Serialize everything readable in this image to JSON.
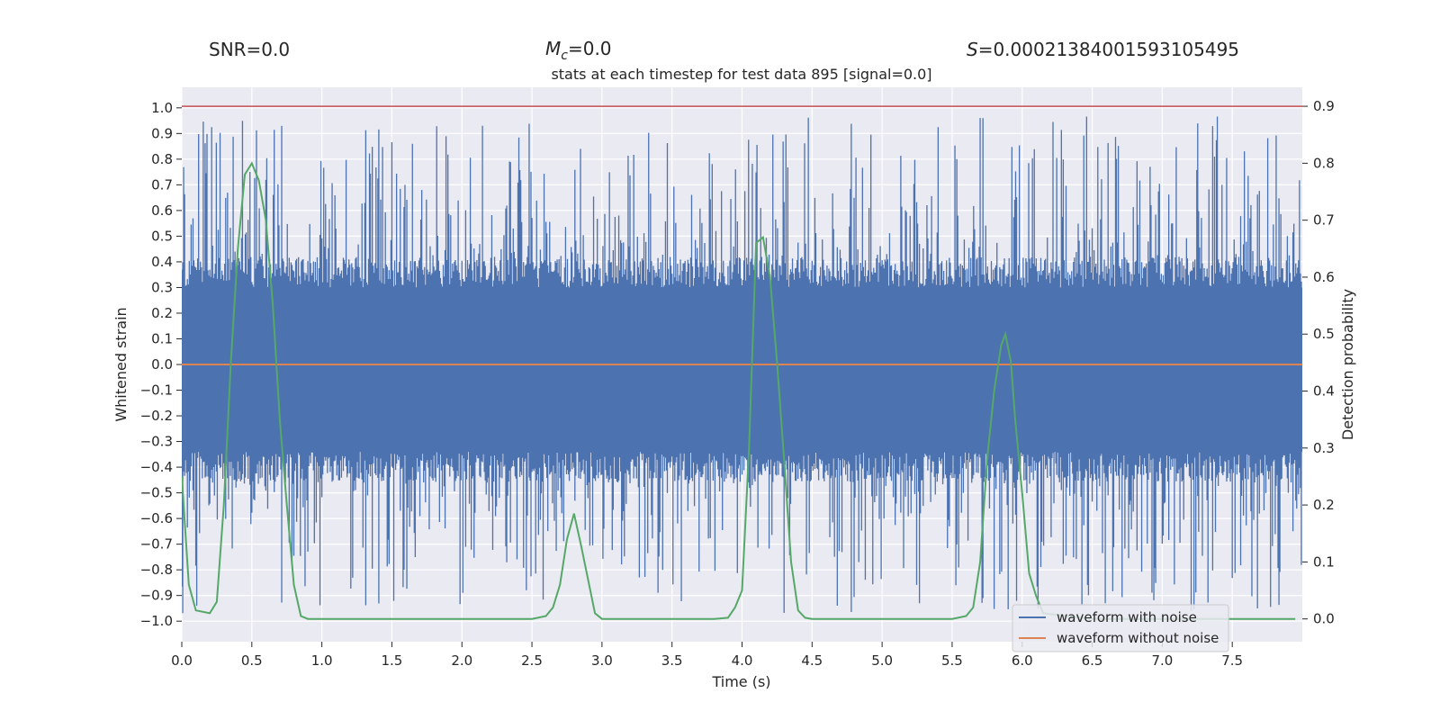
{
  "chart_data": {
    "type": "line",
    "title": "stats at each timestep for test data 895 [signal=0.0]",
    "header": {
      "snr": "SNR=0.0",
      "mc_symbol": "M",
      "mc_sub": "c",
      "mc_value": "=0.0",
      "s_symbol": "S",
      "s_value": "=0.00021384001593105495"
    },
    "xlabel": "Time (s)",
    "ylabel_left": "Whitened strain",
    "ylabel_right": "Detection probability",
    "xlim": [
      0.0,
      8.0
    ],
    "ylim_left": [
      -1.08,
      1.08
    ],
    "ylim_right": [
      -0.04,
      0.9333
    ],
    "x_ticks": [
      "0.0",
      "0.5",
      "1.0",
      "1.5",
      "2.0",
      "2.5",
      "3.0",
      "3.5",
      "4.0",
      "4.5",
      "5.0",
      "5.5",
      "6.0",
      "6.5",
      "7.0",
      "7.5"
    ],
    "x_tick_values": [
      0.0,
      0.5,
      1.0,
      1.5,
      2.0,
      2.5,
      3.0,
      3.5,
      4.0,
      4.5,
      5.0,
      5.5,
      6.0,
      6.5,
      7.0,
      7.5
    ],
    "y_left_ticks": [
      "1.0",
      "0.9",
      "0.8",
      "0.7",
      "0.6",
      "0.5",
      "0.4",
      "0.3",
      "0.2",
      "0.1",
      "0.0",
      "−0.1",
      "−0.2",
      "−0.3",
      "−0.4",
      "−0.5",
      "−0.6",
      "−0.7",
      "−0.8",
      "−0.9",
      "−1.0"
    ],
    "y_left_tick_values": [
      1.0,
      0.9,
      0.8,
      0.7,
      0.6,
      0.5,
      0.4,
      0.3,
      0.2,
      0.1,
      0.0,
      -0.1,
      -0.2,
      -0.3,
      -0.4,
      -0.5,
      -0.6,
      -0.7,
      -0.8,
      -0.9,
      -1.0
    ],
    "y_right_ticks": [
      "0.9",
      "0.8",
      "0.7",
      "0.6",
      "0.5",
      "0.4",
      "0.3",
      "0.2",
      "0.1",
      "0.0"
    ],
    "y_right_tick_values": [
      0.9,
      0.8,
      0.7,
      0.6,
      0.5,
      0.4,
      0.3,
      0.2,
      0.1,
      0.0
    ],
    "threshold": 0.9,
    "noise_envelope": {
      "core_upper": 0.3,
      "core_lower": -0.34,
      "max_abs_peak": 0.97,
      "sample_count": 1200,
      "seed": 895
    },
    "series": [
      {
        "name": "waveform with noise",
        "axis": "left",
        "kind": "noise",
        "color": "#4c72b0"
      },
      {
        "name": "waveform without noise",
        "axis": "left",
        "color": "#dd8452",
        "x": [
          0.0,
          8.0
        ],
        "y": [
          0.0,
          0.0
        ]
      },
      {
        "name": "detection probability",
        "axis": "right",
        "color": "#55a868",
        "x": [
          0.0,
          0.05,
          0.1,
          0.2,
          0.25,
          0.3,
          0.35,
          0.4,
          0.45,
          0.5,
          0.55,
          0.6,
          0.65,
          0.7,
          0.75,
          0.8,
          0.85,
          0.9,
          1.0,
          1.5,
          2.0,
          2.5,
          2.6,
          2.65,
          2.7,
          2.75,
          2.8,
          2.85,
          2.9,
          2.95,
          3.0,
          3.5,
          3.8,
          3.9,
          3.95,
          4.0,
          4.05,
          4.1,
          4.15,
          4.2,
          4.25,
          4.3,
          4.35,
          4.4,
          4.45,
          4.5,
          5.0,
          5.5,
          5.6,
          5.65,
          5.7,
          5.75,
          5.8,
          5.85,
          5.88,
          5.92,
          5.95,
          6.0,
          6.05,
          6.1,
          6.15,
          6.5,
          7.0,
          7.5,
          7.95
        ],
        "y": [
          0.25,
          0.06,
          0.015,
          0.01,
          0.03,
          0.2,
          0.45,
          0.65,
          0.78,
          0.8,
          0.77,
          0.7,
          0.55,
          0.35,
          0.2,
          0.06,
          0.005,
          0.0,
          0.0,
          0.0,
          0.0,
          0.0,
          0.005,
          0.02,
          0.06,
          0.14,
          0.185,
          0.13,
          0.07,
          0.01,
          0.0,
          0.0,
          0.0,
          0.002,
          0.02,
          0.05,
          0.3,
          0.66,
          0.67,
          0.6,
          0.45,
          0.28,
          0.1,
          0.015,
          0.002,
          0.0,
          0.0,
          0.0,
          0.005,
          0.02,
          0.1,
          0.28,
          0.4,
          0.48,
          0.5,
          0.45,
          0.35,
          0.22,
          0.08,
          0.04,
          0.01,
          0.0,
          0.0,
          0.0,
          0.0
        ]
      }
    ],
    "legend": {
      "position": "lower-right",
      "entries": [
        {
          "label": "waveform with noise",
          "color": "#4c72b0"
        },
        {
          "label": "waveform without noise",
          "color": "#dd8452"
        }
      ]
    },
    "colors": {
      "plot_bg": "#eaeaf2",
      "grid": "#ffffff",
      "threshold": "#c44e52",
      "text": "#262626"
    }
  }
}
